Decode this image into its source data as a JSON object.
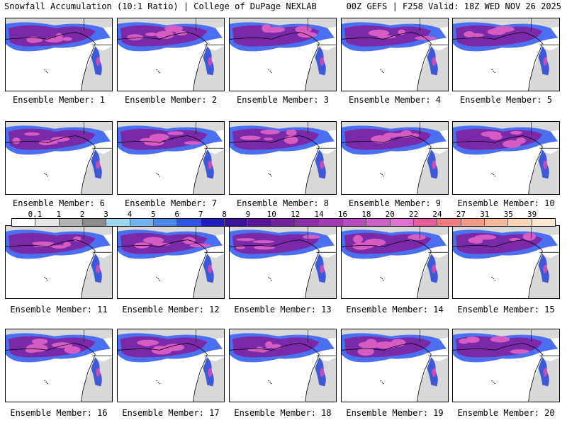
{
  "header": {
    "left_title": "Snowfall Accumulation (10:1 Ratio) | College of DuPage NEXLAB",
    "right_title": "00Z GEFS | F258 Valid: 18Z WED NOV 26 2025"
  },
  "legend": {
    "labels": [
      "0.1",
      "1",
      "2",
      "3",
      "4",
      "5",
      "6",
      "7",
      "8",
      "9",
      "10",
      "12",
      "14",
      "16",
      "18",
      "20",
      "22",
      "24",
      "27",
      "31",
      "35",
      "39"
    ],
    "colors": [
      "#ffffff",
      "#e6e6e6",
      "#b4b4b4",
      "#8c8c8c",
      "#9ed8ef",
      "#74b4f4",
      "#4a88f0",
      "#2e55e6",
      "#1d1fc2",
      "#3b12a0",
      "#5a1496",
      "#74229e",
      "#8c2ea8",
      "#a23ab4",
      "#b84cbe",
      "#cf5fc8",
      "#e070d0",
      "#e85c9a",
      "#f07a80",
      "#f59a88",
      "#f8b89a",
      "#fbd4b6",
      "#fde8d6"
    ]
  },
  "members": [
    {
      "label": "Ensemble Member: 1"
    },
    {
      "label": "Ensemble Member: 2"
    },
    {
      "label": "Ensemble Member: 3"
    },
    {
      "label": "Ensemble Member: 4"
    },
    {
      "label": "Ensemble Member: 5"
    },
    {
      "label": "Ensemble Member: 6"
    },
    {
      "label": "Ensemble Member: 7"
    },
    {
      "label": "Ensemble Member: 8"
    },
    {
      "label": "Ensemble Member: 9"
    },
    {
      "label": "Ensemble Member: 10"
    },
    {
      "label": "Ensemble Member: 11"
    },
    {
      "label": "Ensemble Member: 12"
    },
    {
      "label": "Ensemble Member: 13"
    },
    {
      "label": "Ensemble Member: 14"
    },
    {
      "label": "Ensemble Member: 15"
    },
    {
      "label": "Ensemble Member: 16"
    },
    {
      "label": "Ensemble Member: 17"
    },
    {
      "label": "Ensemble Member: 18"
    },
    {
      "label": "Ensemble Member: 19"
    },
    {
      "label": "Ensemble Member: 20"
    }
  ]
}
